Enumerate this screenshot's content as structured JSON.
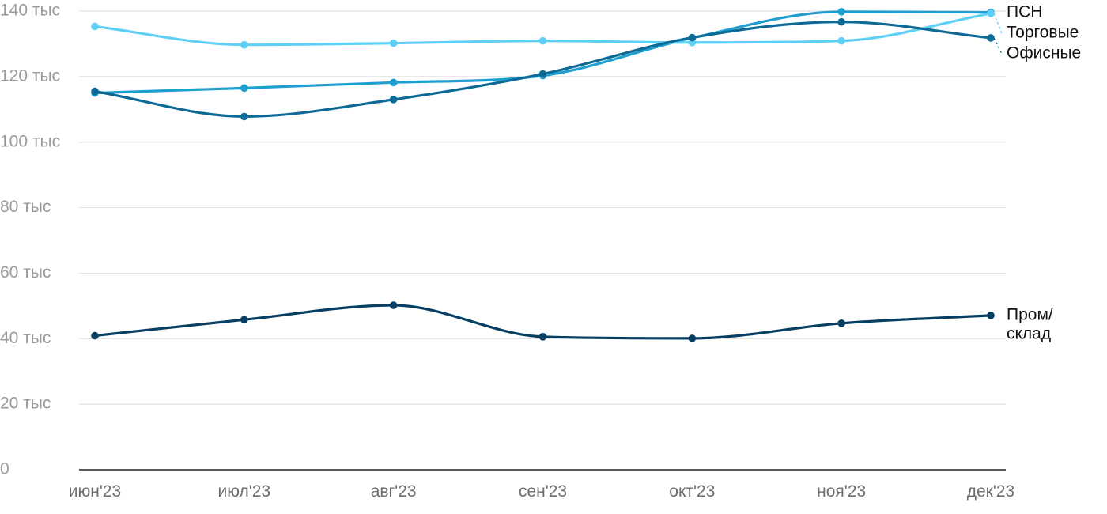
{
  "chart_data": {
    "type": "line",
    "title": "",
    "xlabel": "",
    "ylabel": "",
    "ylim": [
      0,
      140000
    ],
    "yticks": [
      {
        "value": 0,
        "label": "0"
      },
      {
        "value": 20000,
        "label": "20 тыс"
      },
      {
        "value": 40000,
        "label": "40 тыс"
      },
      {
        "value": 60000,
        "label": "60 тыс"
      },
      {
        "value": 80000,
        "label": "80 тыс"
      },
      {
        "value": 100000,
        "label": "100 тыс"
      },
      {
        "value": 120000,
        "label": "120 тыс"
      },
      {
        "value": 140000,
        "label": "140 тыс"
      }
    ],
    "categories": [
      "июн'23",
      "июл'23",
      "авг'23",
      "сен'23",
      "окт'23",
      "ноя'23",
      "дек'23"
    ],
    "grid": true,
    "legend": "labels at line ends (right)",
    "series": [
      {
        "name": "ПСН",
        "label_lines": [
          "ПСН"
        ],
        "color": "#1e9fd0",
        "values": [
          115000,
          116500,
          118200,
          120300,
          131800,
          139800,
          139600
        ]
      },
      {
        "name": "Торговые",
        "label_lines": [
          "Торговые"
        ],
        "color": "#5fd0f5",
        "values": [
          135300,
          129700,
          130200,
          130900,
          130400,
          130900,
          139300
        ]
      },
      {
        "name": "Офисные",
        "label_lines": [
          "Офисные"
        ],
        "color": "#0d6a96",
        "values": [
          115500,
          107800,
          113000,
          120800,
          131900,
          136700,
          131800
        ]
      },
      {
        "name": "Пром/ склад",
        "label_lines": [
          "Пром/",
          "склад"
        ],
        "color": "#073f63",
        "values": [
          40900,
          45800,
          50200,
          40600,
          40100,
          44700,
          47100
        ]
      }
    ]
  }
}
